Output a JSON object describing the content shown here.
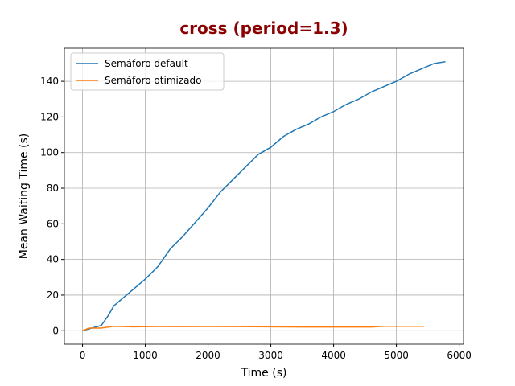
{
  "chart_data": {
    "type": "line",
    "title": "cross (period=1.3)",
    "title_color": "#8b0000",
    "xlabel": "Time (s)",
    "ylabel": "Mean Waiting Time (s)",
    "xlim": [
      -289,
      6069
    ],
    "ylim": [
      -7.55,
      158.55
    ],
    "xticks": [
      0,
      1000,
      2000,
      3000,
      4000,
      5000,
      6000
    ],
    "yticks": [
      0,
      20,
      40,
      60,
      80,
      100,
      120,
      140
    ],
    "grid": true,
    "legend": "upper left",
    "series": [
      {
        "name": "Semáforo default",
        "color": "#1f77b4",
        "x": [
          0,
          100,
          200,
          300,
          400,
          500,
          600,
          800,
          1000,
          1200,
          1400,
          1600,
          1800,
          2000,
          2200,
          2400,
          2600,
          2800,
          3000,
          3200,
          3400,
          3600,
          3800,
          4000,
          4200,
          4400,
          4600,
          4800,
          5000,
          5200,
          5400,
          5600,
          5780
        ],
        "values": [
          0,
          1,
          2,
          3,
          8,
          14,
          17,
          23,
          29,
          36,
          46,
          53,
          61,
          69,
          78,
          85,
          92,
          99,
          103,
          109,
          113,
          116,
          120,
          123,
          127,
          130,
          134,
          137,
          140,
          144,
          147,
          150,
          151
        ]
      },
      {
        "name": "Semáforo otimizado",
        "color": "#ff7f0e",
        "x": [
          0,
          100,
          300,
          500,
          800,
          1200,
          1600,
          2000,
          2500,
          3000,
          3500,
          4000,
          4600,
          4800,
          5440
        ],
        "values": [
          0,
          1.5,
          1.5,
          2.5,
          2.2,
          2.4,
          2.3,
          2.4,
          2.3,
          2.2,
          2.1,
          2.1,
          2.1,
          2.5,
          2.5
        ]
      }
    ]
  }
}
